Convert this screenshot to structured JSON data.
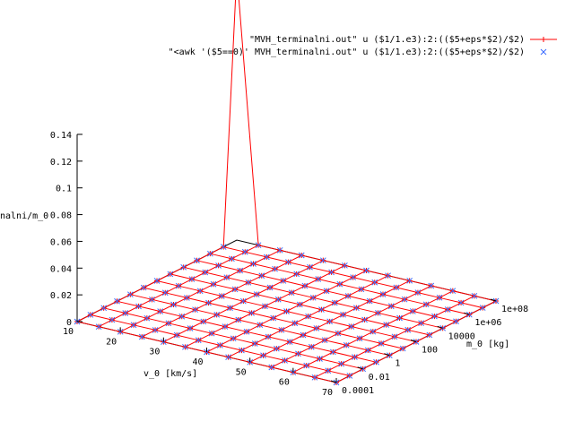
{
  "chart_data": {
    "type": "surface",
    "xlabel": "v_0 [km/s]",
    "ylabel": "m_0 [kg]",
    "zlabel": "nalni/m_0",
    "x_ticks": [
      "10",
      "20",
      "30",
      "40",
      "50",
      "60",
      "70"
    ],
    "y_ticks": [
      "0.0001",
      "0.01",
      "1",
      "100",
      "10000",
      "1e+06",
      "1e+08"
    ],
    "z_ticks": [
      "0",
      "0.02",
      "0.04",
      "0.06",
      "0.08",
      "0.1",
      "0.12",
      "0.14"
    ],
    "xlim": [
      10,
      70
    ],
    "ylim_log10": [
      -4,
      8
    ],
    "zlim": [
      0,
      0.14
    ],
    "grid": {
      "x_steps": 12,
      "y_steps": 12
    },
    "legend_position": "top-right",
    "series": [
      {
        "name": "\"MVH_terminalni.out\" u ($1/1.e3):2:(($5+eps*$2)/$2)",
        "style": "lines+points",
        "marker": "plus",
        "color": "#ff0000",
        "peak": {
          "x": 10,
          "log10_y": 8,
          "z": 0.2
        },
        "floor_value": 0
      },
      {
        "name": "\"<awk '($5==0)' MVH_terminalni.out\" u ($1/1.e3):2:(($5+eps*$2)/$2)",
        "style": "points",
        "marker": "cross",
        "color": "#3b6cff",
        "floor_value": 0
      }
    ]
  }
}
